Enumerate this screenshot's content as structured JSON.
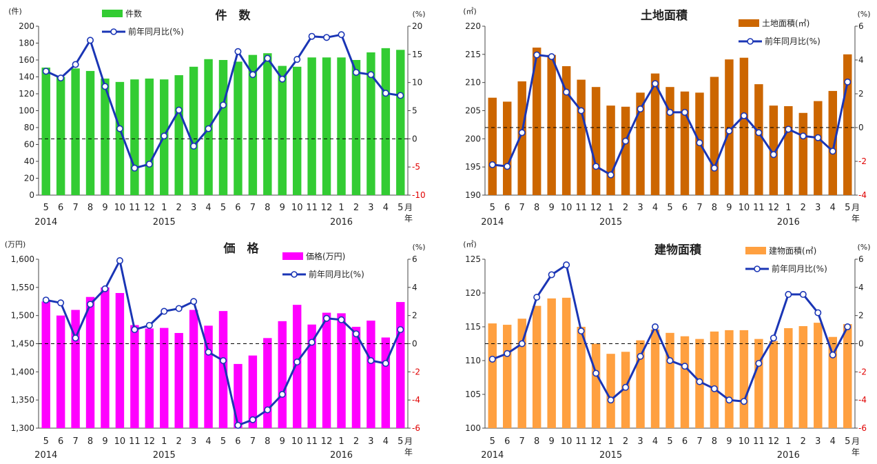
{
  "x_axis": {
    "months": [
      "5",
      "6",
      "7",
      "8",
      "9",
      "10",
      "11",
      "12",
      "1",
      "2",
      "3",
      "4",
      "5",
      "6",
      "7",
      "8",
      "9",
      "10",
      "11",
      "12",
      "1",
      "2",
      "3",
      "4",
      "5"
    ],
    "years": [
      {
        "label": "2014",
        "at": 0
      },
      {
        "label": "2015",
        "at": 8
      },
      {
        "label": "2016",
        "at": 20
      }
    ],
    "unit_month": "月",
    "unit_year": "年"
  },
  "chart_data": [
    {
      "type": "bar",
      "title": "件　数",
      "left_unit": "(件)",
      "right_unit": "(%)",
      "bar_color": "#33cc33",
      "line_color": "#1a35b5",
      "left_ticks": [
        "0",
        "20",
        "40",
        "60",
        "80",
        "100",
        "120",
        "140",
        "160",
        "180",
        "200"
      ],
      "right_ticks": [
        "-10",
        "-5",
        "0",
        "5",
        "10",
        "15",
        "20"
      ],
      "ylim": [
        0,
        200
      ],
      "y2lim": [
        -10,
        20
      ],
      "series": [
        {
          "name": "件数",
          "kind": "bar",
          "values": [
            151,
            140,
            150,
            147,
            138,
            134,
            137,
            138,
            137,
            142,
            152,
            161,
            160,
            158,
            166,
            168,
            153,
            152,
            163,
            163,
            163,
            160,
            169,
            174,
            172
          ]
        },
        {
          "name": "前年同月比(%)",
          "kind": "line",
          "values": [
            12,
            10.8,
            13.2,
            17.5,
            9.3,
            1.8,
            -5.2,
            -4.5,
            0.5,
            5.1,
            -1.3,
            1.8,
            6,
            15.5,
            11.4,
            14.3,
            10.6,
            14.1,
            18.2,
            18,
            18.5,
            11.8,
            11.4,
            8.1,
            7.7
          ]
        }
      ]
    },
    {
      "type": "bar",
      "title": "土地面積",
      "left_unit": "(㎡)",
      "right_unit": "(%)",
      "bar_color": "#cc6600",
      "line_color": "#1a35b5",
      "left_ticks": [
        "190",
        "195",
        "200",
        "205",
        "210",
        "215",
        "220"
      ],
      "right_ticks": [
        "-4",
        "-2",
        "0",
        "2",
        "4",
        "6"
      ],
      "ylim": [
        190,
        220
      ],
      "y2lim": [
        -4,
        6
      ],
      "series": [
        {
          "name": "土地面積(㎡)",
          "kind": "bar",
          "values": [
            207.3,
            206.6,
            210.2,
            216.2,
            214.9,
            212.9,
            210.5,
            209.2,
            205.9,
            205.7,
            208.2,
            211.6,
            209.2,
            208.4,
            208.2,
            211,
            214.1,
            214.4,
            209.7,
            205.9,
            205.8,
            204.6,
            206.7,
            208.5,
            215
          ]
        },
        {
          "name": "前年同月比(%)",
          "kind": "line",
          "values": [
            -2.2,
            -2.3,
            -0.3,
            4.3,
            4.2,
            2.1,
            1,
            -2.3,
            -2.8,
            -0.8,
            1.1,
            2.6,
            0.9,
            0.9,
            -0.9,
            -2.4,
            -0.2,
            0.7,
            -0.3,
            -1.6,
            -0.1,
            -0.5,
            -0.6,
            -1.4,
            2.7
          ]
        }
      ]
    },
    {
      "type": "bar",
      "title": "価　格",
      "left_unit": "(万円)",
      "right_unit": "(%)",
      "bar_color": "#ff00ff",
      "line_color": "#1a35b5",
      "left_ticks": [
        "1,300",
        "1,350",
        "1,400",
        "1,450",
        "1,500",
        "1,550",
        "1,600"
      ],
      "right_ticks": [
        "-6",
        "-4",
        "-2",
        "0",
        "2",
        "4",
        "6"
      ],
      "ylim": [
        1300,
        1600
      ],
      "y2lim": [
        -6,
        6
      ],
      "series": [
        {
          "name": "価格(万円)",
          "kind": "bar",
          "values": [
            1525,
            1500,
            1510,
            1533,
            1550,
            1540,
            1483,
            1477,
            1478,
            1469,
            1510,
            1482,
            1508,
            1414,
            1429,
            1460,
            1490,
            1519,
            1484,
            1505,
            1504,
            1480,
            1491,
            1461,
            1524
          ]
        },
        {
          "name": "前年同月比(%)",
          "kind": "line",
          "values": [
            3.1,
            2.9,
            0.4,
            2.8,
            3.9,
            5.9,
            1,
            1.3,
            2.3,
            2.5,
            3,
            -0.6,
            -1.2,
            -5.8,
            -5.4,
            -4.7,
            -3.6,
            -1.3,
            0.1,
            1.8,
            1.7,
            0.7,
            -1.2,
            -1.4,
            1
          ]
        }
      ]
    },
    {
      "type": "bar",
      "title": "建物面積",
      "left_unit": "(㎡)",
      "right_unit": "(%)",
      "bar_color": "#ffa040",
      "line_color": "#1a35b5",
      "left_ticks": [
        "100",
        "105",
        "110",
        "115",
        "120",
        "125"
      ],
      "right_ticks": [
        "-6",
        "-4",
        "-2",
        "0",
        "2",
        "4",
        "6"
      ],
      "ylim": [
        100,
        125
      ],
      "y2lim": [
        -6,
        6
      ],
      "series": [
        {
          "name": "建物面積(㎡)",
          "kind": "bar",
          "values": [
            115.5,
            115.3,
            116.2,
            118.1,
            119.2,
            119.3,
            115,
            112.5,
            111,
            111.3,
            113,
            114.6,
            114.1,
            113.6,
            113.2,
            114.3,
            114.5,
            114.5,
            113.2,
            112.9,
            114.8,
            115.1,
            115.6,
            113.5,
            115.4
          ]
        },
        {
          "name": "前年同月比(%)",
          "kind": "line",
          "values": [
            -1.1,
            -0.7,
            0,
            3.3,
            4.9,
            5.6,
            0.9,
            -2.1,
            -4,
            -3.1,
            -0.9,
            1.2,
            -1.2,
            -1.6,
            -2.7,
            -3.2,
            -4,
            -4.1,
            -1.4,
            0.4,
            3.5,
            3.5,
            2.2,
            -0.8,
            1.2
          ]
        }
      ]
    }
  ]
}
